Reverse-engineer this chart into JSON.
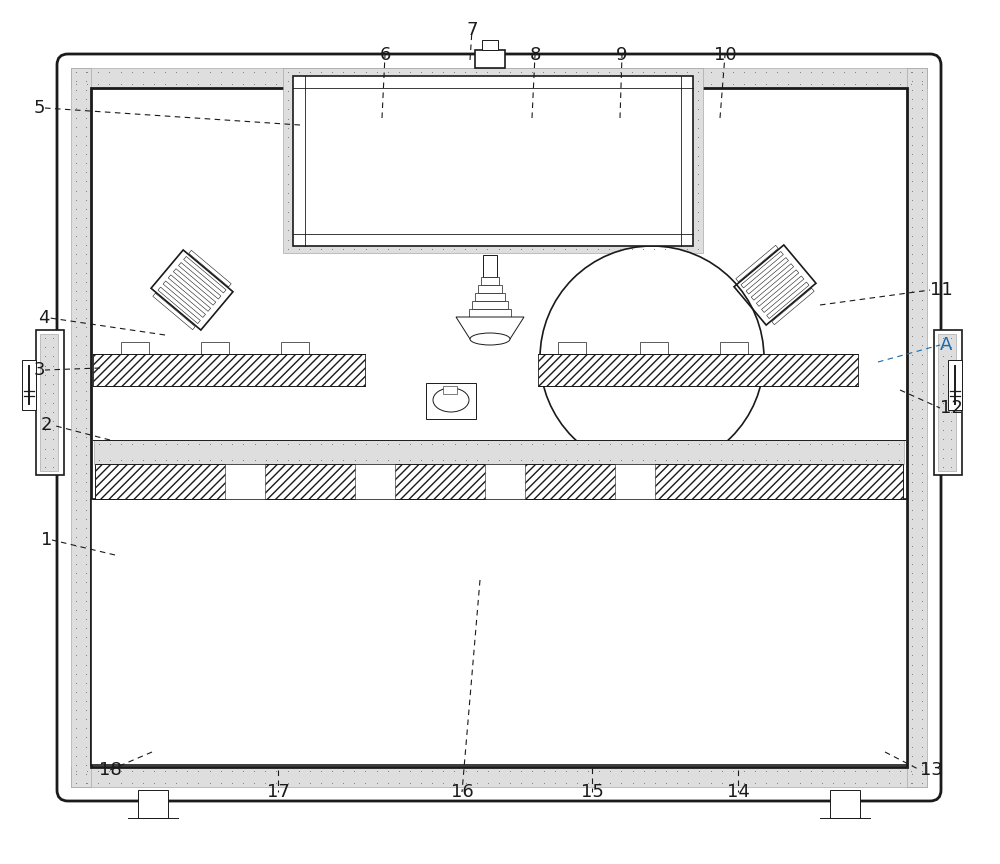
{
  "bg_color": "#ffffff",
  "lc": "#1a1a1a",
  "lc_blue": "#1a6aad",
  "figsize": [
    10.0,
    8.64
  ],
  "dpi": 100,
  "label_fs": 13,
  "leaders": [
    [
      "1",
      115,
      555,
      52,
      540,
      "k"
    ],
    [
      "2",
      110,
      440,
      52,
      425,
      "k"
    ],
    [
      "3",
      100,
      368,
      45,
      370,
      "k"
    ],
    [
      "4",
      165,
      335,
      50,
      318,
      "k"
    ],
    [
      "5",
      300,
      125,
      45,
      108,
      "k"
    ],
    [
      "6",
      382,
      118,
      385,
      55,
      "k"
    ],
    [
      "7",
      470,
      60,
      472,
      30,
      "k"
    ],
    [
      "8",
      532,
      118,
      535,
      55,
      "k"
    ],
    [
      "9",
      620,
      118,
      622,
      55,
      "k"
    ],
    [
      "10",
      720,
      118,
      725,
      55,
      "k"
    ],
    [
      "11",
      820,
      305,
      930,
      290,
      "k"
    ],
    [
      "12",
      900,
      390,
      940,
      408,
      "k"
    ],
    [
      "13",
      885,
      752,
      920,
      770,
      "k"
    ],
    [
      "14",
      738,
      770,
      738,
      792,
      "k"
    ],
    [
      "15",
      592,
      768,
      592,
      792,
      "k"
    ],
    [
      "16",
      480,
      580,
      462,
      792,
      "k"
    ],
    [
      "17",
      278,
      770,
      278,
      792,
      "k"
    ],
    [
      "18",
      152,
      752,
      110,
      770,
      "k"
    ],
    [
      "A",
      878,
      362,
      940,
      345,
      "blue"
    ]
  ]
}
